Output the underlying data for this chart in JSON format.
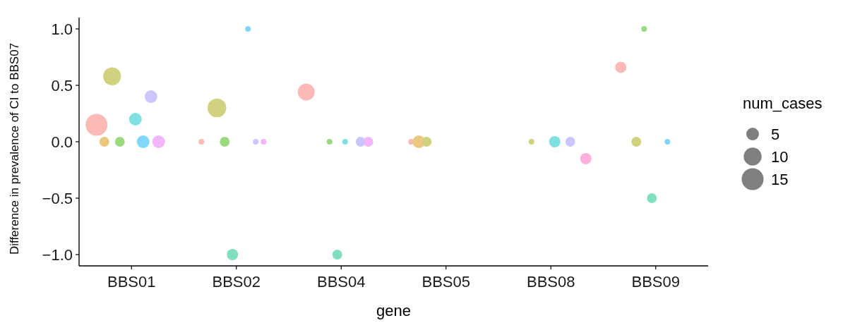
{
  "chart_data": {
    "type": "bubble",
    "xlabel": "gene",
    "ylabel": "Difference in prevalence of CI to BBS07",
    "legend_title": "num_cases",
    "size_legend": [
      5,
      10,
      15
    ],
    "categories": [
      "BBS01",
      "BBS02",
      "BBS04",
      "BBS05",
      "BBS08",
      "BBS09"
    ],
    "ylim": [
      -1.1,
      1.1
    ],
    "yticks": [
      {
        "value": -1,
        "label": "−1.0"
      },
      {
        "value": -0.5,
        "label": "−0.5"
      },
      {
        "value": 0,
        "label": "0.0"
      },
      {
        "value": 0.5,
        "label": "0.5"
      },
      {
        "value": 1,
        "label": "1.0"
      }
    ],
    "series": [
      {
        "color": "#fbbab6",
        "x": [
          "BBS01",
          "BBS02",
          "BBS04",
          "BBS05",
          "BBS09"
        ],
        "values": [
          0.15,
          0,
          0.44,
          0,
          0.66
        ],
        "sizes": [
          15,
          1,
          9,
          1,
          4
        ]
      },
      {
        "color": "#ebc780",
        "x": [
          "BBS01",
          "BBS05"
        ],
        "values": [
          0,
          0
        ],
        "sizes": [
          3,
          5
        ]
      },
      {
        "color": "#d1d280",
        "x": [
          "BBS01",
          "BBS02",
          "BBS05",
          "BBS08",
          "BBS09"
        ],
        "values": [
          0.58,
          0.3,
          0,
          0,
          0
        ],
        "sizes": [
          10,
          11,
          3,
          1,
          3
        ]
      },
      {
        "color": "#9cda80",
        "x": [
          "BBS01",
          "BBS02",
          "BBS04",
          "BBS09"
        ],
        "values": [
          0,
          0,
          0,
          1.0
        ],
        "sizes": [
          3,
          3,
          1,
          1
        ]
      },
      {
        "color": "#80dfbe",
        "x": [
          "BBS02",
          "BBS04",
          "BBS09"
        ],
        "values": [
          -1,
          -1,
          -0.5
        ],
        "sizes": [
          4,
          3,
          3
        ]
      },
      {
        "color": "#80dfe1",
        "x": [
          "BBS01",
          "BBS04",
          "BBS08"
        ],
        "values": [
          0.2,
          0,
          0
        ],
        "sizes": [
          5,
          1,
          4
        ]
      },
      {
        "color": "#80d7fa",
        "x": [
          "BBS01",
          "BBS02",
          "BBS09"
        ],
        "values": [
          0,
          1,
          0
        ],
        "sizes": [
          5,
          1,
          1
        ]
      },
      {
        "color": "#cac7ff",
        "x": [
          "BBS01",
          "BBS02",
          "BBS04",
          "BBS08"
        ],
        "values": [
          0.4,
          0,
          0,
          0
        ],
        "sizes": [
          5,
          1,
          3,
          3
        ]
      },
      {
        "color": "#f3b5f9",
        "x": [
          "BBS01",
          "BBS02",
          "BBS04"
        ],
        "values": [
          0,
          0,
          0
        ],
        "sizes": [
          5,
          1,
          3
        ]
      },
      {
        "color": "#ffb0dd",
        "x": [
          "BBS08"
        ],
        "values": [
          -0.15
        ],
        "sizes": [
          4
        ]
      }
    ]
  }
}
